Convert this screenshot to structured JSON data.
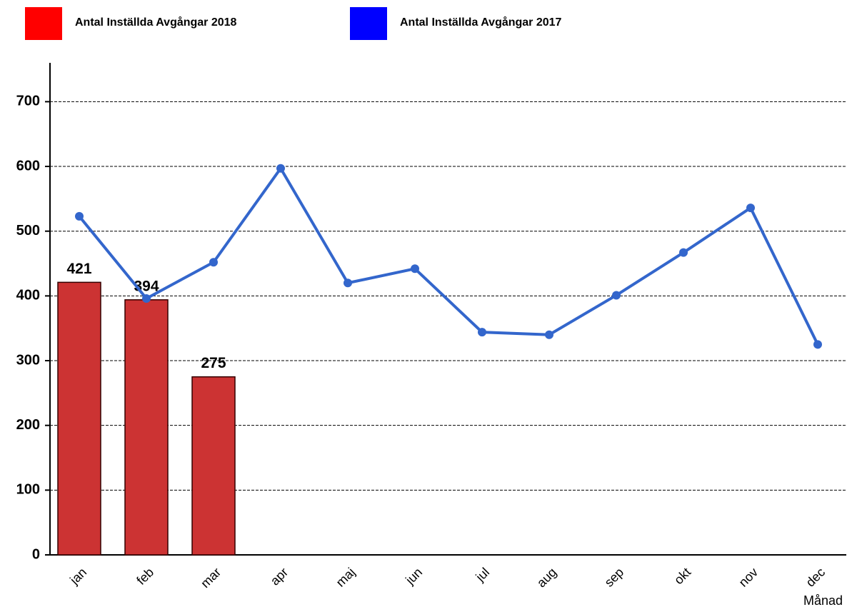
{
  "chart_data": {
    "type": "combo",
    "x_label": "Månad",
    "categories": [
      "jan",
      "feb",
      "mar",
      "apr",
      "maj",
      "jun",
      "jul",
      "aug",
      "sep",
      "okt",
      "nov",
      "dec"
    ],
    "series": [
      {
        "name": "Antal Inställda Avgångar 2018",
        "type": "bar",
        "color": "#cc3333",
        "legend_color": "#ff0000",
        "values": [
          421,
          394,
          275,
          null,
          null,
          null,
          null,
          null,
          null,
          null,
          null,
          null
        ],
        "show_labels": true
      },
      {
        "name": "Antal Inställda Avgångar 2017",
        "type": "line",
        "color": "#3366cc",
        "legend_color": "#0000ff",
        "values": [
          523,
          396,
          452,
          597,
          420,
          442,
          344,
          340,
          401,
          467,
          536,
          325
        ]
      }
    ],
    "ylim": [
      0,
      760
    ],
    "yticks": [
      0,
      100,
      200,
      300,
      400,
      500,
      600,
      700
    ],
    "grid": true
  }
}
